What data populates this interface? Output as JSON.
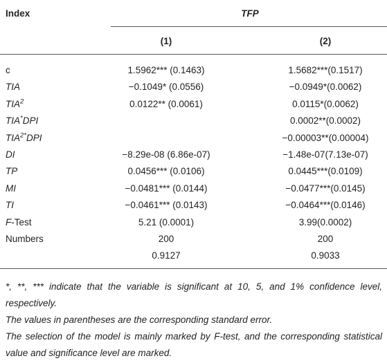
{
  "table": {
    "header": {
      "index": "Index",
      "group": "TFP",
      "columns": [
        "(1)",
        "(2)"
      ]
    },
    "rows": [
      {
        "label": [
          "c"
        ],
        "cells": [
          "1.5962*** (0.1463)",
          "1.5682***(0.1517)"
        ]
      },
      {
        "label": [
          "TIA"
        ],
        "cells": [
          "−0.1049* (0.0556)",
          "−0.0949*(0.0062)"
        ]
      },
      {
        "label": [
          "TIA",
          "2"
        ],
        "cells": [
          "0.0122** (0.0061)",
          "0.0115*(0.0062)"
        ]
      },
      {
        "label": [
          "TIA",
          "*",
          "DPI"
        ],
        "cells": [
          null,
          "0.0002**(0.0002)"
        ]
      },
      {
        "label": [
          "TIA",
          "2*",
          "DPI"
        ],
        "cells": [
          null,
          "−0.00003**(0.00004)"
        ]
      },
      {
        "label": [
          "DI"
        ],
        "cells": [
          "−8.29e-08 (6.86e-07)",
          "−1.48e-07(7.13e-07)"
        ]
      },
      {
        "label": [
          "TP"
        ],
        "cells": [
          "0.0456*** (0.0106)",
          "0.0445***(0.0109)"
        ]
      },
      {
        "label": [
          "MI"
        ],
        "cells": [
          "−0.0481*** (0.0144)",
          "−0.0477***(0.0145)"
        ]
      },
      {
        "label": [
          "TI"
        ],
        "cells": [
          "−0.0461*** (0.0143)",
          "−0.0464***(0.0146)"
        ]
      },
      {
        "label": [
          "F",
          "-Test"
        ],
        "cells": [
          "5.21 (0.0001)",
          "3.99(0.0002)"
        ]
      },
      {
        "label": [
          "Numbers"
        ],
        "cells": [
          "200",
          "200"
        ]
      },
      {
        "cells": [
          "0.9127",
          "0.9033"
        ]
      }
    ]
  },
  "notes": [
    "*, **, *** indicate that the variable is significant at 10, 5, and 1% confidence level, respectively.",
    "The values in parentheses are the corresponding standard error.",
    "The selection of the model is mainly marked by F-test, and the corresponding statistical value and significance level are marked."
  ]
}
